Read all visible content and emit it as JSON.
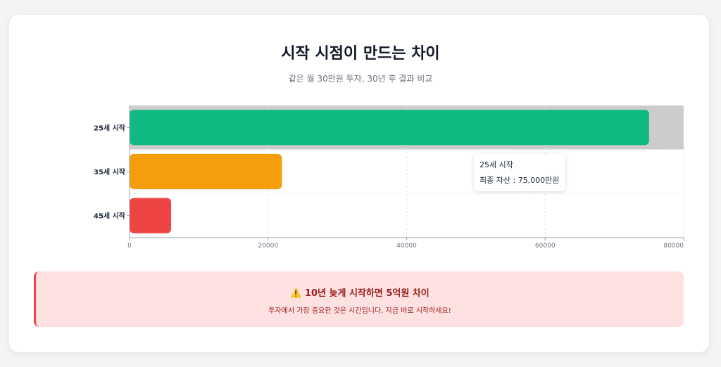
{
  "title": "시작 시점이 만드는 차이",
  "subtitle": "같은 월 30만원 투자, 30년 후 결과 비교",
  "chart_data": {
    "type": "bar",
    "orientation": "horizontal",
    "categories": [
      "25세 시작",
      "35세 시작",
      "45세 시작"
    ],
    "values": [
      75000,
      22000,
      6000
    ],
    "colors": [
      "#10b981",
      "#f59e0b",
      "#ef4444"
    ],
    "xlim": [
      0,
      80000
    ],
    "xticks": [
      "0",
      "20000",
      "40000",
      "60000",
      "80000"
    ],
    "grid": true,
    "highlighted_category": "25세 시작"
  },
  "tooltip": {
    "title": "25세 시작",
    "value": "최종 자산 : 75,000만원"
  },
  "alert": {
    "icon": "warning-icon",
    "title": "⚠️ 10년 늦게 시작하면 5억원 차이",
    "text": "투자에서 가장 중요한 것은 시간입니다. 지금 바로 시작하세요!"
  }
}
